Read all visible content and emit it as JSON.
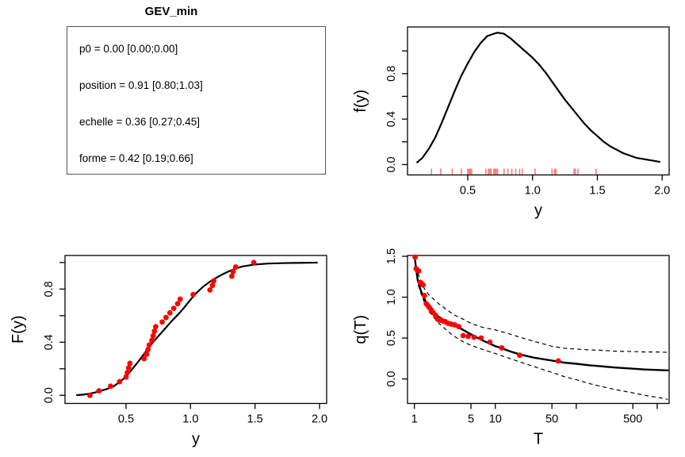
{
  "figure": {
    "background": "#ffffff"
  },
  "colors": {
    "curve": "#000000",
    "point": "#ff0000",
    "rug": "rgba(255,0,0,0.55)",
    "box_border": "#000000",
    "param_box_border": "#545454",
    "text": "#000000"
  },
  "params_panel": {
    "title": "GEV_min",
    "lines": [
      "p0 = 0.00 [0.00;0.00]",
      "position = 0.91 [0.80;1.03]",
      "echelle = 0.36 [0.27;0.45]",
      "forme = 0.42 [0.19;0.66]"
    ]
  },
  "chart_data": [
    {
      "id": "density",
      "type": "line",
      "title": "",
      "xlabel": "y",
      "ylabel": "f(y)",
      "xlim": [
        0.035,
        2.054
      ],
      "ylim": [
        -0.091,
        1.21
      ],
      "x_ticks": [
        0.5,
        1.0,
        1.5,
        2.0
      ],
      "x_tick_labels": [
        "0.5",
        "1.0",
        "1.5",
        "2.0"
      ],
      "y_ticks": [
        0.0,
        0.2,
        0.4,
        0.6,
        0.8,
        1.0
      ],
      "y_tick_labels": [
        "0.0",
        "",
        "0.4",
        "",
        "0.8",
        ""
      ],
      "grid": false,
      "curve": {
        "x": [
          0.11,
          0.15,
          0.2,
          0.25,
          0.3,
          0.35,
          0.4,
          0.45,
          0.5,
          0.55,
          0.6,
          0.65,
          0.7,
          0.73,
          0.78,
          0.83,
          0.88,
          0.93,
          1.0,
          1.05,
          1.1,
          1.15,
          1.2,
          1.25,
          1.3,
          1.35,
          1.4,
          1.45,
          1.5,
          1.55,
          1.6,
          1.65,
          1.7,
          1.75,
          1.8,
          1.85,
          1.9,
          1.98
        ],
        "y": [
          0.02,
          0.06,
          0.14,
          0.24,
          0.37,
          0.51,
          0.65,
          0.78,
          0.89,
          0.99,
          1.07,
          1.13,
          1.15,
          1.16,
          1.15,
          1.11,
          1.06,
          1.01,
          0.94,
          0.88,
          0.81,
          0.73,
          0.65,
          0.57,
          0.5,
          0.43,
          0.36,
          0.3,
          0.25,
          0.2,
          0.16,
          0.13,
          0.1,
          0.08,
          0.06,
          0.05,
          0.04,
          0.025
        ]
      },
      "rug": [
        0.22,
        0.29,
        0.38,
        0.45,
        0.5,
        0.51,
        0.52,
        0.53,
        0.64,
        0.66,
        0.67,
        0.68,
        0.7,
        0.71,
        0.72,
        0.73,
        0.78,
        0.81,
        0.84,
        0.87,
        0.9,
        0.92,
        1.02,
        1.15,
        1.17,
        1.18,
        1.32,
        1.33,
        1.35,
        1.49
      ]
    },
    {
      "id": "cdf",
      "type": "line+scatter",
      "title": "",
      "xlabel": "y",
      "ylabel": "F(y)",
      "xlim": [
        0.027,
        2.055
      ],
      "ylim": [
        -0.061,
        1.053
      ],
      "x_ticks": [
        0.5,
        1.0,
        1.5,
        2.0
      ],
      "x_tick_labels": [
        "0.5",
        "1.0",
        "1.5",
        "2.0"
      ],
      "y_ticks": [
        0.0,
        0.2,
        0.4,
        0.6,
        0.8,
        1.0
      ],
      "y_tick_labels": [
        "0.0",
        "",
        "0.4",
        "",
        "0.8",
        ""
      ],
      "grid": false,
      "curve": {
        "x": [
          0.12,
          0.16,
          0.2,
          0.25,
          0.3,
          0.35,
          0.4,
          0.45,
          0.5,
          0.55,
          0.6,
          0.65,
          0.7,
          0.75,
          0.8,
          0.85,
          0.91,
          0.95,
          1.0,
          1.05,
          1.1,
          1.15,
          1.2,
          1.25,
          1.3,
          1.35,
          1.4,
          1.45,
          1.5,
          1.6,
          1.7,
          1.8,
          1.9,
          1.98
        ],
        "y": [
          0.002,
          0.005,
          0.01,
          0.019,
          0.032,
          0.048,
          0.065,
          0.1,
          0.14,
          0.2,
          0.26,
          0.325,
          0.39,
          0.445,
          0.5,
          0.555,
          0.615,
          0.66,
          0.72,
          0.775,
          0.82,
          0.855,
          0.885,
          0.912,
          0.935,
          0.955,
          0.97,
          0.978,
          0.985,
          0.992,
          0.995,
          0.997,
          0.998,
          0.999
        ]
      },
      "points": {
        "x": [
          0.22,
          0.29,
          0.38,
          0.45,
          0.5,
          0.51,
          0.52,
          0.53,
          0.64,
          0.66,
          0.67,
          0.68,
          0.7,
          0.71,
          0.72,
          0.73,
          0.78,
          0.81,
          0.84,
          0.87,
          0.9,
          0.92,
          1.02,
          1.15,
          1.17,
          1.18,
          1.32,
          1.33,
          1.35,
          1.49
        ],
        "y": [
          0,
          0.034,
          0.069,
          0.103,
          0.138,
          0.172,
          0.207,
          0.241,
          0.276,
          0.31,
          0.345,
          0.379,
          0.414,
          0.448,
          0.483,
          0.517,
          0.552,
          0.586,
          0.621,
          0.655,
          0.69,
          0.724,
          0.759,
          0.793,
          0.828,
          0.862,
          0.897,
          0.931,
          0.966,
          1
        ]
      }
    },
    {
      "id": "return_level",
      "type": "line+scatter",
      "title": "",
      "xlabel": "T",
      "ylabel": "q(T)",
      "x_log": true,
      "xlim": [
        0.822,
        1404
      ],
      "ylim": [
        -0.3,
        1.51
      ],
      "x_ticks": [
        1,
        5,
        10,
        50,
        100,
        500,
        1000
      ],
      "x_tick_labels": [
        "1",
        "5",
        "10",
        "50",
        "",
        "500",
        ""
      ],
      "y_ticks": [
        0.0,
        0.5,
        1.0,
        1.5
      ],
      "y_tick_labels": [
        "0.0",
        "0.5",
        "1.0",
        "1.5"
      ],
      "grid": false,
      "central_curve": {
        "T": [
          1.02,
          1.05,
          1.1,
          1.2,
          1.3,
          1.5,
          1.7,
          2,
          2.5,
          3,
          4,
          5,
          7,
          10,
          12,
          15,
          20,
          30,
          50,
          70,
          100,
          150,
          200,
          300,
          500,
          700,
          1000,
          1350
        ],
        "q": [
          1.45,
          1.34,
          1.21,
          1.08,
          1.0,
          0.88,
          0.81,
          0.76,
          0.7,
          0.67,
          0.6,
          0.545,
          0.47,
          0.4,
          0.375,
          0.34,
          0.3,
          0.26,
          0.225,
          0.2,
          0.185,
          0.165,
          0.155,
          0.14,
          0.125,
          0.115,
          0.11,
          0.105
        ]
      },
      "upper_band": {
        "T": [
          1.05,
          1.1,
          1.2,
          1.3,
          1.5,
          2,
          3,
          4,
          5,
          7,
          10,
          15,
          20,
          30,
          50,
          70,
          100,
          150,
          200,
          300,
          500,
          700,
          1000,
          1350
        ],
        "q": [
          1.38,
          1.3,
          1.2,
          1.12,
          1.03,
          0.92,
          0.79,
          0.73,
          0.68,
          0.63,
          0.6,
          0.55,
          0.51,
          0.46,
          0.4,
          0.375,
          0.365,
          0.355,
          0.35,
          0.34,
          0.335,
          0.33,
          0.33,
          0.325
        ]
      },
      "lower_band": {
        "T": [
          1.05,
          1.1,
          1.2,
          1.3,
          1.5,
          2,
          3,
          4,
          5,
          7,
          10,
          15,
          20,
          30,
          50,
          70,
          100,
          150,
          200,
          300,
          500,
          700,
          1000,
          1350
        ],
        "q": [
          1.32,
          1.17,
          1.05,
          0.96,
          0.83,
          0.68,
          0.53,
          0.455,
          0.41,
          0.36,
          0.31,
          0.25,
          0.21,
          0.15,
          0.08,
          0.03,
          -0.01,
          -0.06,
          -0.09,
          -0.13,
          -0.17,
          -0.2,
          -0.225,
          -0.25
        ]
      },
      "points": {
        "T": [
          60,
          20,
          12,
          8.57,
          6.67,
          5.45,
          4.62,
          4,
          3.53,
          3.16,
          2.86,
          2.61,
          2.4,
          2.22,
          2.07,
          1.94,
          1.82,
          1.71,
          1.62,
          1.54,
          1.46,
          1.4,
          1.33,
          1.28,
          1.22,
          1.18,
          1.13,
          1.09,
          1.05,
          1.02
        ],
        "q": [
          0.22,
          0.29,
          0.38,
          0.45,
          0.5,
          0.51,
          0.52,
          0.53,
          0.64,
          0.66,
          0.67,
          0.68,
          0.7,
          0.71,
          0.72,
          0.73,
          0.78,
          0.81,
          0.84,
          0.87,
          0.9,
          0.92,
          1.02,
          1.15,
          1.17,
          1.18,
          1.32,
          1.33,
          1.35,
          1.49
        ]
      }
    }
  ]
}
